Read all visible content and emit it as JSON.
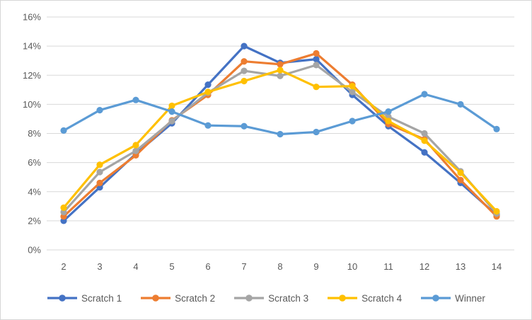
{
  "chart": {
    "background": "#FFFFFF",
    "border_color": "#D6D6D6",
    "gridline_color": "#D9D9D9",
    "text_color": "#595959"
  },
  "chart_data": {
    "type": "line",
    "title": "",
    "xlabel": "",
    "ylabel": "",
    "x": [
      2,
      3,
      4,
      5,
      6,
      7,
      8,
      9,
      10,
      11,
      12,
      13,
      14
    ],
    "ylim": [
      0,
      16
    ],
    "ytick_step": 2,
    "yticks": [
      "0%",
      "2%",
      "4%",
      "6%",
      "8%",
      "10%",
      "12%",
      "14%",
      "16%"
    ],
    "grid": true,
    "legend_position": "bottom",
    "marker_style": "circle",
    "series": [
      {
        "name": "Scratch 1",
        "color": "#4472C4",
        "values": [
          2.0,
          4.3,
          6.6,
          8.7,
          11.35,
          14.0,
          12.85,
          13.1,
          10.65,
          8.5,
          6.7,
          4.6,
          2.4
        ]
      },
      {
        "name": "Scratch 2",
        "color": "#ED7D31",
        "values": [
          2.3,
          4.6,
          6.5,
          8.9,
          10.65,
          12.95,
          12.75,
          13.5,
          11.35,
          8.65,
          7.6,
          4.8,
          2.3
        ]
      },
      {
        "name": "Scratch 3",
        "color": "#A5A5A5",
        "values": [
          2.6,
          5.35,
          6.8,
          8.85,
          10.8,
          12.3,
          11.95,
          12.7,
          10.85,
          9.15,
          8.0,
          5.4,
          2.5
        ]
      },
      {
        "name": "Scratch 4",
        "color": "#FFC000",
        "values": [
          2.9,
          5.85,
          7.2,
          9.9,
          10.85,
          11.6,
          12.35,
          11.2,
          11.25,
          8.85,
          7.5,
          5.3,
          2.65
        ]
      },
      {
        "name": "Winner",
        "color": "#5B9BD5",
        "values": [
          8.2,
          9.6,
          10.3,
          9.5,
          8.55,
          8.5,
          7.95,
          8.1,
          8.85,
          9.5,
          10.7,
          10.0,
          8.3
        ]
      }
    ]
  }
}
